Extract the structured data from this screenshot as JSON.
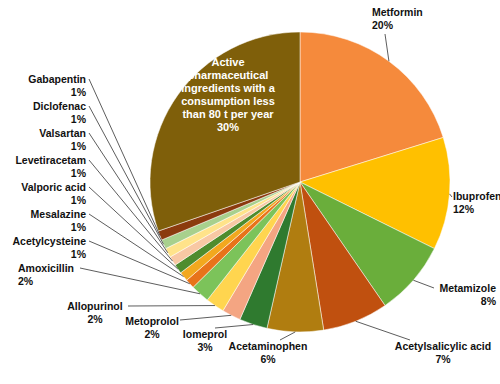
{
  "chart_data": {
    "type": "pie",
    "categories": [
      "Metformin",
      "Ibuprofen",
      "Metamizole",
      "Acetylsalicylic acid",
      "Acetaminophen",
      "Iomeprol",
      "Metoprolol",
      "Allopurinol",
      "Amoxicillin",
      "Acetylcysteine",
      "Mesalazine",
      "Valporic acid",
      "Levetiracetam",
      "Valsartan",
      "Diclofenac",
      "Gabapentin",
      "Active pharmaceutical ingredients with a consumption less than 80 t per year"
    ],
    "values": [
      20,
      12,
      8,
      7,
      6,
      3,
      2,
      2,
      2,
      1,
      1,
      1,
      1,
      1,
      1,
      1,
      30
    ],
    "value_labels": [
      "20%",
      "12%",
      "8%",
      "7%",
      "6%",
      "3%",
      "2%",
      "2%",
      "2%",
      "1%",
      "1%",
      "1%",
      "1%",
      "1%",
      "1%",
      "1%",
      "30%"
    ],
    "colors": [
      "#F58A3C",
      "#FFC000",
      "#6AAE3B",
      "#C0500F",
      "#B07D10",
      "#2F7A2F",
      "#F4A582",
      "#FFD54F",
      "#7CC35A",
      "#E8731A",
      "#F2A81E",
      "#4E8C2E",
      "#F8C8A4",
      "#FFE38A",
      "#A8D08D",
      "#8B3A0E",
      "#7F5F0A"
    ],
    "data_labels": true
  }
}
